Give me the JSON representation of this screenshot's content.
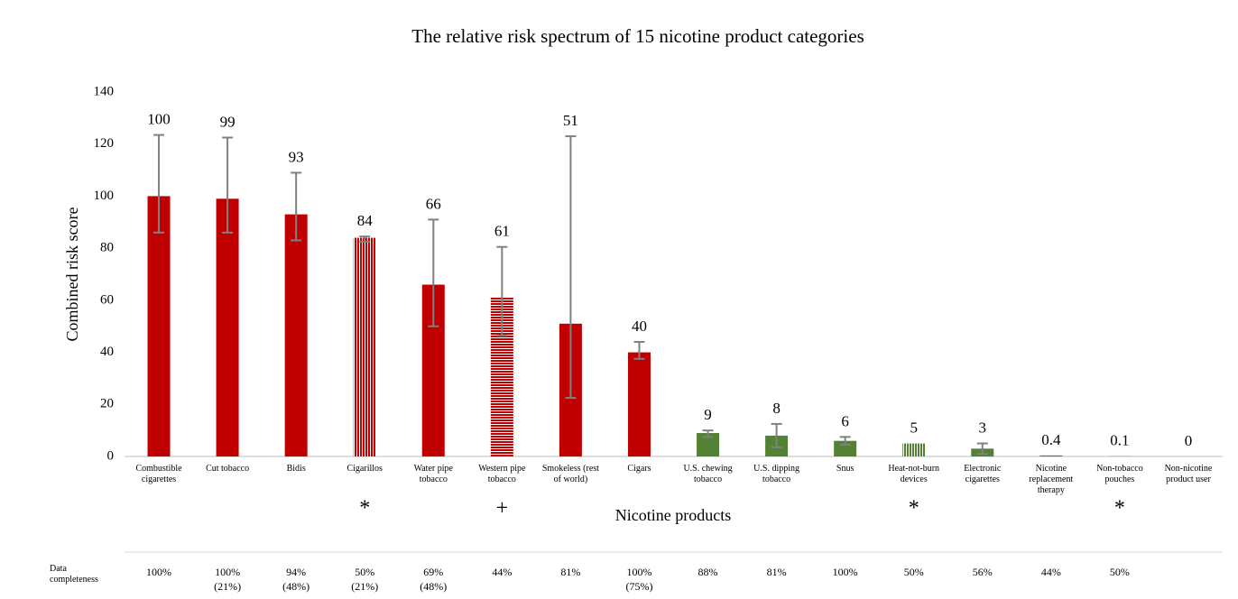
{
  "chart_data": {
    "type": "bar",
    "title": "The relative risk spectrum of 15 nicotine product categories",
    "y_label": "Combined risk score",
    "x_label": "Nicotine products",
    "categories": [
      "Combustible cigarettes",
      "Cut tobacco",
      "Bidis",
      "Cigarillos",
      "Water pipe tobacco",
      "Western pipe tobacco",
      "Smokeless (rest of world)",
      "Cigars",
      "U.S. chewing tobacco",
      "U.S. dipping tobacco",
      "Snus",
      "Heat-not-burn devices",
      "Electronic cigarettes",
      "Nicotine replacement therapy",
      "Non-tobacco pouches",
      "Non-nicotine product user"
    ],
    "values": [
      100,
      99,
      93,
      84,
      66,
      61,
      51,
      40,
      9,
      8,
      6,
      5,
      3,
      0.4,
      0.1,
      0
    ],
    "error_upper": [
      123.5,
      122.5,
      109,
      84.5,
      91,
      80.5,
      123,
      44,
      10,
      12.5,
      7.5,
      null,
      5,
      null,
      null,
      null
    ],
    "error_lower": [
      86,
      86,
      83,
      82.5,
      50,
      46.5,
      22.5,
      37.5,
      7.5,
      3.5,
      4.5,
      null,
      1,
      null,
      null,
      null
    ],
    "colors": [
      "#c00000",
      "#c00000",
      "#c00000",
      "#c00000",
      "#c00000",
      "#c00000",
      "#c00000",
      "#c00000",
      "#548235",
      "#548235",
      "#548235",
      "#548235",
      "#548235",
      "#548235",
      "#548235",
      "#548235"
    ],
    "patterns": [
      "solid",
      "solid",
      "solid",
      "vertical",
      "solid",
      "horizontal",
      "solid",
      "solid",
      "solid",
      "solid",
      "solid",
      "vertical",
      "solid",
      "solid",
      "solid",
      "solid"
    ],
    "markers": [
      null,
      null,
      null,
      "*",
      null,
      "+",
      null,
      null,
      null,
      null,
      null,
      "*",
      null,
      null,
      "*",
      null
    ],
    "completeness_label": "Data completeness",
    "completeness": [
      "100%",
      "100%",
      "94%",
      "50%",
      "69%",
      "44%",
      "81%",
      "100%",
      "88%",
      "81%",
      "100%",
      "50%",
      "56%",
      "44%",
      "50%",
      null
    ],
    "completeness_sub": [
      null,
      "(21%)",
      "(48%)",
      "(21%)",
      "(48%)",
      null,
      null,
      "(75%)",
      null,
      null,
      null,
      null,
      null,
      null,
      null,
      null
    ],
    "ylim": [
      0,
      140
    ],
    "yticks": [
      0,
      20,
      40,
      60,
      80,
      100,
      120,
      140
    ],
    "grid": false
  }
}
